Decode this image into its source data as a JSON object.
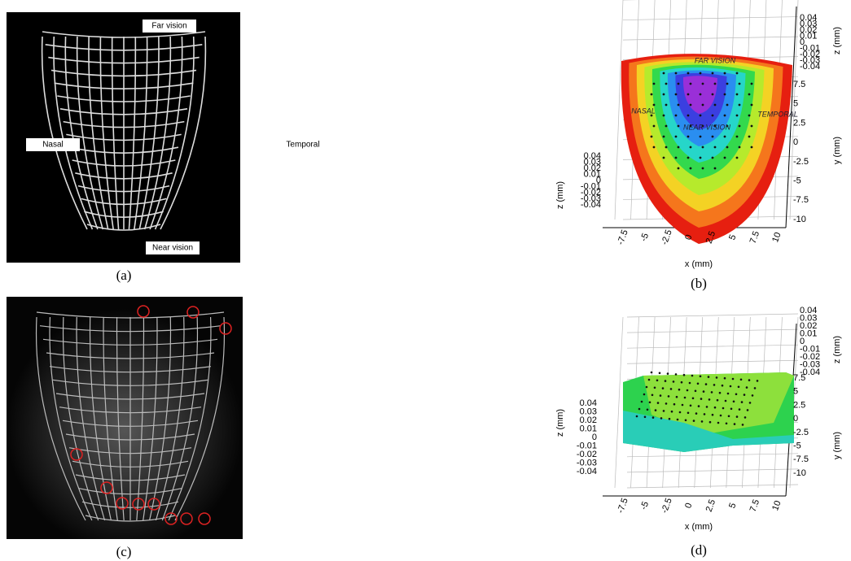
{
  "panels": [
    {
      "caption": "(a)",
      "labels": {
        "top": "Far vision",
        "left": "Nasal",
        "right": "Temporal",
        "bottom": "Near vision"
      }
    },
    {
      "caption": "(b)",
      "x_label": "x (mm)",
      "y_label": "y (mm)",
      "z_label": "z (mm)",
      "x_ticks": [
        "-7.5",
        "-5",
        "-2.5",
        "0",
        "2.5",
        "5",
        "7.5",
        "10"
      ],
      "y_ticks": [
        "7.5",
        "5",
        "2.5",
        "0",
        "-2.5",
        "-5",
        "-7.5",
        "-10"
      ],
      "z_ticks": [
        "0.04",
        "0.03",
        "0.02",
        "0.01",
        "0",
        "-0.01",
        "-0.02",
        "-0.03",
        "-0.04"
      ],
      "annotations": [
        "FAR VISION",
        "NASAL",
        "TEMPORAL",
        "NEAR VISION"
      ]
    },
    {
      "caption": "(c)"
    },
    {
      "caption": "(d)",
      "x_label": "x (mm)",
      "y_label": "y (mm)",
      "z_label": "z (mm)",
      "x_ticks": [
        "-7.5",
        "-5",
        "-2.5",
        "0",
        "2.5",
        "5",
        "7.5",
        "10"
      ],
      "y_ticks": [
        "7.5",
        "5",
        "2.5",
        "0",
        "-2.5",
        "-5",
        "-7.5",
        "-10"
      ],
      "z_ticks": [
        "0.04",
        "0.03",
        "0.02",
        "0.01",
        "0",
        "-0.01",
        "-0.02",
        "-0.03",
        "-0.04"
      ]
    }
  ]
}
